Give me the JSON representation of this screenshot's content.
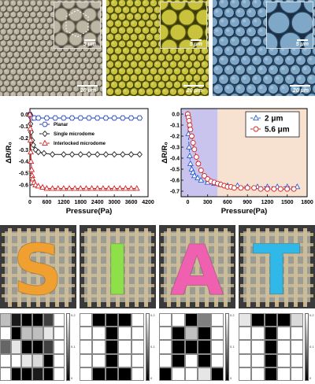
{
  "sem": [
    {
      "scale_inset": "5 μm",
      "scale_main": "20 μm",
      "base": "#7d776a",
      "dome": "#bdb6a5",
      "shadow": "#4a4539"
    },
    {
      "scale_inset": "5 μm",
      "scale_main": "20 μm",
      "base": "#5a5a12",
      "dome": "#c8c23c",
      "shadow": "#3a3a08"
    },
    {
      "scale_inset": "5 μm",
      "scale_main": "20 μm",
      "base": "#2c4a66",
      "dome": "#7fa8c8",
      "shadow": "#1a2e44"
    }
  ],
  "chart_data": [
    {
      "type": "line",
      "xlabel": "Pressure(Pa)",
      "ylabel": "ΔR/R₀",
      "xlim": [
        0,
        4200
      ],
      "ylim": [
        -0.7,
        0.05
      ],
      "xticks": [
        "0",
        "600",
        "1200",
        "1800",
        "2400",
        "3000",
        "3600",
        "4200"
      ],
      "xtick_values": [
        0,
        600,
        1200,
        1800,
        2400,
        3000,
        3600,
        4200
      ],
      "yticks": [
        "0.0",
        "-0.1",
        "-0.2",
        "-0.3",
        "-0.4",
        "-0.5",
        "-0.6"
      ],
      "ytick_values": [
        0.0,
        -0.1,
        -0.2,
        -0.3,
        -0.4,
        -0.5,
        -0.6
      ],
      "series": [
        {
          "name": "Planar",
          "color": "#1f3fbf",
          "marker": "hexagon",
          "x": [
            0,
            40,
            80,
            150,
            300,
            600,
            900,
            1200,
            1500,
            1800,
            2100,
            2400,
            2700,
            3000,
            3300,
            3600,
            3900
          ],
          "y": [
            0,
            -0.02,
            -0.03,
            -0.03,
            -0.03,
            -0.03,
            -0.03,
            -0.03,
            -0.03,
            -0.03,
            -0.03,
            -0.03,
            -0.03,
            -0.03,
            -0.03,
            -0.03,
            -0.03
          ]
        },
        {
          "name": "Single microdome",
          "color": "#222222",
          "marker": "diamond",
          "x": [
            0,
            20,
            40,
            80,
            120,
            200,
            300,
            500,
            800,
            1200,
            1500,
            1800,
            2100,
            2400,
            2700,
            3000,
            3300,
            3600,
            3900
          ],
          "y": [
            0,
            -0.08,
            -0.15,
            -0.22,
            -0.26,
            -0.3,
            -0.32,
            -0.33,
            -0.34,
            -0.34,
            -0.34,
            -0.34,
            -0.34,
            -0.34,
            -0.34,
            -0.34,
            -0.34,
            -0.34,
            -0.34
          ]
        },
        {
          "name": "Interlocked microdome",
          "color": "#d62020",
          "marker": "triangle",
          "x": [
            0,
            10,
            20,
            30,
            40,
            60,
            80,
            100,
            150,
            200,
            300,
            450,
            600,
            800,
            1000,
            1200,
            1400,
            1600,
            1800,
            2000,
            2200,
            2400,
            2600,
            2800,
            3000,
            3200,
            3400,
            3600,
            3800
          ],
          "y": [
            0,
            -0.12,
            -0.22,
            -0.32,
            -0.4,
            -0.47,
            -0.52,
            -0.55,
            -0.58,
            -0.6,
            -0.61,
            -0.62,
            -0.63,
            -0.63,
            -0.63,
            -0.63,
            -0.63,
            -0.63,
            -0.63,
            -0.63,
            -0.63,
            -0.63,
            -0.63,
            -0.63,
            -0.63,
            -0.63,
            -0.63,
            -0.63,
            -0.63
          ]
        }
      ]
    },
    {
      "type": "line",
      "xlabel": "Pressure(Pa)",
      "ylabel": "ΔR/R₀",
      "xlim": [
        -100,
        1800
      ],
      "ylim": [
        -0.75,
        0.05
      ],
      "xticks": [
        "0",
        "300",
        "600",
        "900",
        "1200",
        "1500",
        "1800"
      ],
      "xtick_values": [
        0,
        300,
        600,
        900,
        1200,
        1500,
        1800
      ],
      "yticks": [
        "0.0",
        "-0.1",
        "-0.2",
        "-0.3",
        "-0.4",
        "-0.5",
        "-0.6",
        "-0.7"
      ],
      "ytick_values": [
        0.0,
        -0.1,
        -0.2,
        -0.3,
        -0.4,
        -0.5,
        -0.6,
        -0.7
      ],
      "shade_split": 450,
      "shade_left": "#c9c4ee",
      "shade_right": "#f7e2d2",
      "series": [
        {
          "name": "2 μm",
          "color": "#2a5fd8",
          "marker": "triangle",
          "x": [
            0,
            10,
            20,
            30,
            40,
            60,
            80,
            100,
            150,
            200,
            300,
            400,
            500,
            600,
            750,
            900,
            1050,
            1200,
            1350,
            1500,
            1650
          ],
          "y": [
            0,
            -0.18,
            -0.3,
            -0.38,
            -0.45,
            -0.5,
            -0.53,
            -0.56,
            -0.58,
            -0.6,
            -0.62,
            -0.63,
            -0.64,
            -0.65,
            -0.65,
            -0.66,
            -0.66,
            -0.66,
            -0.66,
            -0.66,
            -0.66
          ]
        },
        {
          "name": "5.6 μm",
          "color": "#d62020",
          "marker": "circle",
          "x": [
            0,
            10,
            20,
            30,
            40,
            60,
            80,
            100,
            130,
            160,
            200,
            250,
            300,
            350,
            400,
            450,
            500,
            550,
            600,
            650,
            700,
            800,
            900,
            1000,
            1100,
            1200,
            1300,
            1400,
            1500,
            1600
          ],
          "y": [
            0,
            -0.03,
            -0.06,
            -0.1,
            -0.14,
            -0.2,
            -0.26,
            -0.32,
            -0.39,
            -0.45,
            -0.51,
            -0.56,
            -0.59,
            -0.61,
            -0.62,
            -0.63,
            -0.64,
            -0.65,
            -0.66,
            -0.66,
            -0.67,
            -0.67,
            -0.67,
            -0.67,
            -0.68,
            -0.68,
            -0.68,
            -0.68,
            -0.68,
            -0.68
          ]
        }
      ]
    }
  ],
  "photos": [
    {
      "letter": "S",
      "color": "#f0a030",
      "size": 88
    },
    {
      "letter": "I",
      "color": "#8ee04a",
      "size": 88
    },
    {
      "letter": "A",
      "color": "#f060b0",
      "size": 88
    },
    {
      "letter": "T",
      "color": "#30b8e8",
      "size": 88
    }
  ],
  "heatmaps": [
    {
      "grid": [
        [
          0.05,
          0.18,
          0.2,
          0.2,
          0.15,
          0.0
        ],
        [
          0.0,
          0.2,
          0.05,
          0.05,
          0.02,
          0.0
        ],
        [
          0.12,
          0.02,
          0.2,
          0.2,
          0.15,
          0.0
        ],
        [
          0.0,
          0.0,
          0.02,
          0.03,
          0.2,
          0.0
        ],
        [
          0.0,
          0.2,
          0.2,
          0.18,
          0.2,
          0.0
        ]
      ],
      "cb_labels": [
        "0.2",
        "0.1",
        "0"
      ]
    },
    {
      "grid": [
        [
          0.0,
          0.2,
          0.2,
          0.2,
          0.0
        ],
        [
          0.0,
          0.0,
          0.2,
          0.0,
          0.0
        ],
        [
          0.0,
          0.0,
          0.2,
          0.0,
          0.0
        ],
        [
          0.0,
          0.0,
          0.2,
          0.0,
          0.0
        ],
        [
          0.0,
          0.2,
          0.2,
          0.2,
          0.0
        ]
      ],
      "cb_labels": [
        "0.2",
        "0.1",
        "0"
      ]
    },
    {
      "grid": [
        [
          0.0,
          0.0,
          0.2,
          0.1,
          0.0
        ],
        [
          0.0,
          0.2,
          0.05,
          0.2,
          0.0
        ],
        [
          0.0,
          0.2,
          0.2,
          0.2,
          0.0
        ],
        [
          0.0,
          0.2,
          0.0,
          0.2,
          0.0
        ],
        [
          0.2,
          0.0,
          0.0,
          0.02,
          0.2
        ]
      ],
      "cb_labels": [
        "0.2",
        "0.1",
        "0"
      ]
    },
    {
      "grid": [
        [
          0.02,
          0.2,
          0.2,
          0.2,
          0.03
        ],
        [
          0.0,
          0.0,
          0.2,
          0.0,
          0.0
        ],
        [
          0.0,
          0.0,
          0.2,
          0.0,
          0.0
        ],
        [
          0.0,
          0.0,
          0.2,
          0.0,
          0.0
        ],
        [
          0.0,
          0.0,
          0.2,
          0.0,
          0.0
        ]
      ],
      "cb_labels": [
        "0.2",
        "0.1",
        "0"
      ]
    }
  ]
}
